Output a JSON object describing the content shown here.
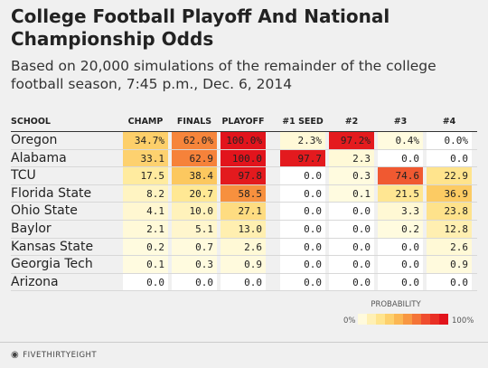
{
  "title": "College Football Playoff And National Championship Odds",
  "subtitle": "Based on 20,000 simulations of the remainder of the college football season, 7:45 p.m., Dec. 6, 2014",
  "legend": {
    "title": "PROBABILITY",
    "min_label": "0%",
    "max_label": "100%"
  },
  "footer": {
    "brand": "FIVETHIRTYEIGHT",
    "logo_icon": "fivethirtyeight-fox-icon"
  },
  "colors": {
    "low": "#fffbe0",
    "mid": "#f7c24a",
    "high": "#e8141c",
    "background": "#f0f0f0"
  },
  "chart_data": {
    "type": "table",
    "columns": [
      "SCHOOL",
      "CHAMP",
      "FINALS",
      "PLAYOFF",
      "#1 SEED",
      "#2",
      "#3",
      "#4"
    ],
    "rows": [
      {
        "school": "Oregon",
        "values": [
          "34.7%",
          "62.0%",
          "100.0%",
          "2.3%",
          "97.2%",
          "0.4%",
          "0.0%"
        ]
      },
      {
        "school": "Alabama",
        "values": [
          "33.1",
          "62.9",
          "100.0",
          "97.7",
          "2.3",
          "0.0",
          "0.0"
        ]
      },
      {
        "school": "TCU",
        "values": [
          "17.5",
          "38.4",
          "97.8",
          "0.0",
          "0.3",
          "74.6",
          "22.9"
        ]
      },
      {
        "school": "Florida State",
        "values": [
          "8.2",
          "20.7",
          "58.5",
          "0.0",
          "0.1",
          "21.5",
          "36.9"
        ]
      },
      {
        "school": "Ohio State",
        "values": [
          "4.1",
          "10.0",
          "27.1",
          "0.0",
          "0.0",
          "3.3",
          "23.8"
        ]
      },
      {
        "school": "Baylor",
        "values": [
          "2.1",
          "5.1",
          "13.0",
          "0.0",
          "0.0",
          "0.2",
          "12.8"
        ]
      },
      {
        "school": "Kansas State",
        "values": [
          "0.2",
          "0.7",
          "2.6",
          "0.0",
          "0.0",
          "0.0",
          "2.6"
        ]
      },
      {
        "school": "Georgia Tech",
        "values": [
          "0.1",
          "0.3",
          "0.9",
          "0.0",
          "0.0",
          "0.0",
          "0.9"
        ]
      },
      {
        "school": "Arizona",
        "values": [
          "0.0",
          "0.0",
          "0.0",
          "0.0",
          "0.0",
          "0.0",
          "0.0"
        ]
      }
    ]
  }
}
